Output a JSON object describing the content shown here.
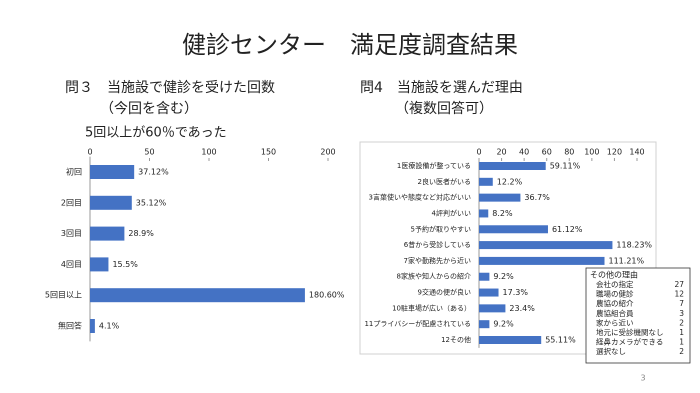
{
  "slide": {
    "title": "健診センター　満足度調査結果",
    "page_number": "3"
  },
  "chart_data": [
    {
      "type": "hbar",
      "title": "問３　当施設で健診を受けた回数",
      "subtitle": "（今回を含む）",
      "annotation": "5回以上が60％であった",
      "categories": [
        "初回",
        "2回目",
        "3回目",
        "4回目",
        "5回目以上",
        "無回答"
      ],
      "values": [
        37.12,
        35.12,
        28.9,
        15.5,
        180.6,
        4.1
      ],
      "value_labels": [
        "37.12%",
        "35.12%",
        "28.9%",
        "15.5%",
        "180.60%",
        "4.1%"
      ],
      "color": "#4472c4",
      "xlim": [
        0,
        200
      ],
      "xticks": [
        0,
        50,
        100,
        150,
        200
      ]
    },
    {
      "type": "hbar",
      "title": "問4　当施設を選んだ理由",
      "subtitle": "（複数回答可）",
      "categories": [
        "1医療設備が整っている",
        "2良い医者がいる",
        "3言葉使いや態度など対応がいい",
        "4評判がいい",
        "5予約が取りやすい",
        "6昔から受診している",
        "7家や勤務先から近い",
        "8家族や知人からの紹介",
        "9交通の便が良い",
        "10駐車場が広い（ある）",
        "11プライバシーが配慮されている",
        "12その他"
      ],
      "values": [
        59.11,
        12.2,
        36.7,
        8.2,
        61.12,
        118.23,
        111.21,
        9.2,
        17.3,
        23.4,
        9.2,
        55.11
      ],
      "value_labels": [
        "59.11%",
        "12.2%",
        "36.7%",
        "8.2%",
        "61.12%",
        "118.23%",
        "111.21%",
        "9.2%",
        "17.3%",
        "23.4%",
        "9.2%",
        "55.11%"
      ],
      "color": "#4472c4",
      "xlim": [
        0,
        140
      ],
      "xticks": [
        0,
        20,
        40,
        60,
        80,
        100,
        120,
        140
      ]
    }
  ],
  "other_reasons": {
    "title": "その他の理由",
    "rows": [
      [
        "会社の指定",
        "27"
      ],
      [
        "職場の健診",
        "12"
      ],
      [
        "農協の紹介",
        "7"
      ],
      [
        "農協組合員",
        "3"
      ],
      [
        "家から近い",
        "2"
      ],
      [
        "地元に受診機関なし",
        "1"
      ],
      [
        "経鼻カメラができる",
        "1"
      ],
      [
        "選択なし",
        "2"
      ]
    ]
  }
}
